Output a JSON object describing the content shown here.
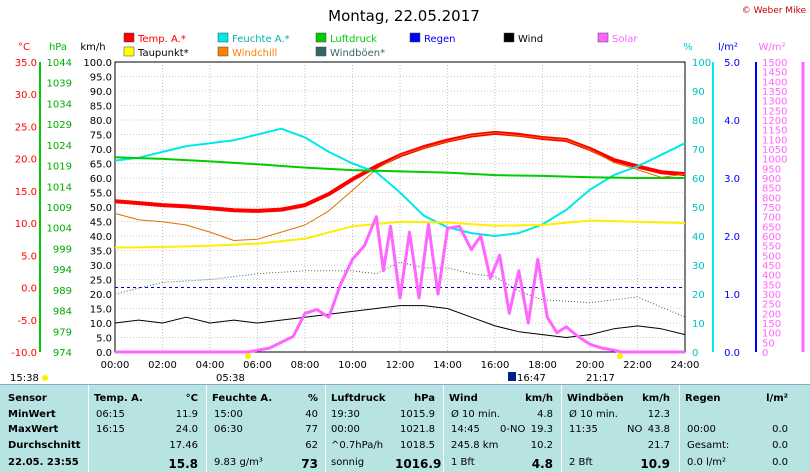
{
  "title": "Montag, 22.05.2017",
  "copyright": "© Weber Mike",
  "legend": [
    {
      "label": "Temp. A.*",
      "color": "#ff0000"
    },
    {
      "label": "Feuchte A.*",
      "color": "#00e8e8"
    },
    {
      "label": "Luftdruck",
      "color": "#00cc00"
    },
    {
      "label": "Regen",
      "color": "#0000ff"
    },
    {
      "label": "Wind",
      "color": "#000000"
    },
    {
      "label": "Solar",
      "color": "#ff66ff"
    },
    {
      "label": "Taupunkt*",
      "color": "#ffff00"
    },
    {
      "label": "Windchill",
      "color": "#ff8000"
    },
    {
      "label": "Windböen*",
      "color": "#336666"
    }
  ],
  "axis_titles": {
    "temp": "°C",
    "pressure": "hPa",
    "wind": "km/h",
    "humidity": "%",
    "rain": "l/m²",
    "solar": "W/m²"
  },
  "sun_times": {
    "sunrise": "05:38",
    "sunset": "21:17",
    "moon": "16:47",
    "left": "15:38"
  },
  "chart_data": {
    "type": "line",
    "x_ticks": [
      "00:00",
      "02:00",
      "04:00",
      "06:00",
      "08:00",
      "10:00",
      "12:00",
      "14:00",
      "16:00",
      "18:00",
      "20:00",
      "22:00",
      "24:00"
    ],
    "wind_axis": {
      "range": [
        0,
        100
      ],
      "ticks": [
        "0.0",
        "5.0",
        "10.0",
        "15.0",
        "20.0",
        "25.0",
        "30.0",
        "35.0",
        "40.0",
        "45.0",
        "50.0",
        "55.0",
        "60.0",
        "65.0",
        "70.0",
        "75.0",
        "80.0",
        "85.0",
        "90.0",
        "95.0",
        "100.0"
      ]
    },
    "temp_axis": {
      "range": [
        -10,
        35
      ],
      "ticks": [
        "-10.0",
        "-5.0",
        "0.0",
        "5.0",
        "10.0",
        "15.0",
        "20.0",
        "25.0",
        "30.0",
        "35.0"
      ]
    },
    "pressure_axis": {
      "ticks": [
        "974",
        "979",
        "984",
        "989",
        "994",
        "999",
        "1004",
        "1009",
        "1014",
        "1019",
        "1024",
        "1029",
        "1034",
        "1039",
        "1044"
      ]
    },
    "humidity_axis": {
      "range": [
        0,
        100
      ],
      "ticks": [
        "0",
        "10",
        "20",
        "30",
        "40",
        "50",
        "60",
        "70",
        "80",
        "90",
        "100"
      ]
    },
    "rain_axis": {
      "range": [
        0,
        5
      ],
      "ticks": [
        "0.0",
        "1.0",
        "2.0",
        "3.0",
        "4.0",
        "5.0"
      ]
    },
    "solar_axis": {
      "range": [
        0,
        1500
      ],
      "ticks": [
        "0",
        "50",
        "100",
        "150",
        "200",
        "250",
        "300",
        "350",
        "400",
        "450",
        "500",
        "550",
        "600",
        "650",
        "700",
        "750",
        "800",
        "850",
        "900",
        "950",
        "1000",
        "1050",
        "1100",
        "1150",
        "1200",
        "1250",
        "1300",
        "1350",
        "1400",
        "1450",
        "1500"
      ]
    },
    "series": [
      {
        "name": "Temp. A.*",
        "axis": "temp",
        "hours": [
          0,
          1,
          2,
          3,
          4,
          5,
          6,
          7,
          8,
          9,
          10,
          11,
          12,
          13,
          14,
          15,
          16,
          17,
          18,
          19,
          20,
          21,
          22,
          23,
          24
        ],
        "values": [
          13.4,
          13.1,
          12.8,
          12.6,
          12.3,
          12.0,
          11.9,
          12.1,
          12.8,
          14.5,
          16.8,
          18.8,
          20.5,
          21.8,
          22.8,
          23.6,
          24.0,
          23.7,
          23.2,
          22.9,
          21.5,
          19.8,
          18.8,
          17.9,
          17.6
        ]
      },
      {
        "name": "Feuchte A.*",
        "axis": "humidity",
        "hours": [
          0,
          1,
          2,
          3,
          4,
          5,
          6,
          7,
          8,
          9,
          10,
          11,
          12,
          13,
          14,
          15,
          16,
          17,
          18,
          19,
          20,
          21,
          22,
          23,
          24
        ],
        "values": [
          66,
          67,
          69,
          71,
          72,
          73,
          75,
          77,
          74,
          69,
          65,
          62,
          55,
          47,
          43,
          41,
          40,
          41,
          44,
          49,
          56,
          61,
          64,
          68,
          72
        ]
      },
      {
        "name": "Taupunkt*",
        "axis": "temp",
        "hours": [
          0,
          2,
          4,
          6,
          8,
          10,
          12,
          14,
          16,
          18,
          20,
          22,
          24
        ],
        "values": [
          6.2,
          6.3,
          6.5,
          6.8,
          7.6,
          9.5,
          10.2,
          10.1,
          9.6,
          9.7,
          10.4,
          10.2,
          10.0
        ]
      },
      {
        "name": "Windchill",
        "axis": "temp",
        "hours": [
          0,
          1,
          2,
          3,
          4,
          5,
          6,
          7,
          8,
          9,
          10,
          11,
          12,
          13,
          14,
          15,
          16,
          17,
          18,
          19,
          20,
          21,
          22,
          23,
          24
        ],
        "values": [
          11.5,
          10.5,
          10.2,
          9.7,
          8.6,
          7.3,
          7.5,
          8.6,
          9.7,
          11.9,
          15.1,
          18.4,
          20.5,
          21.7,
          22.7,
          23.6,
          24.0,
          23.6,
          23.2,
          22.9,
          21.4,
          19.4,
          18.3,
          17.1,
          17.6
        ]
      },
      {
        "name": "Luftdruck",
        "axis": "pressure",
        "hours": [
          0,
          2,
          4,
          6,
          8,
          10,
          12,
          14,
          16,
          18,
          20,
          22,
          24
        ],
        "values": [
          1021.0,
          1020.6,
          1020.0,
          1019.3,
          1018.5,
          1017.9,
          1017.6,
          1017.3,
          1016.7,
          1016.5,
          1016.2,
          1016.0,
          1016.0
        ]
      },
      {
        "name": "Windböen*",
        "axis": "wind",
        "hours": [
          0,
          2,
          4,
          6,
          8,
          10,
          11,
          12,
          13,
          14,
          15,
          16,
          17,
          18,
          20,
          22,
          24
        ],
        "values": [
          20,
          24,
          25,
          27,
          28,
          28,
          27,
          31,
          29,
          29,
          27,
          26,
          21,
          18,
          17,
          19,
          12
        ]
      },
      {
        "name": "Wind",
        "axis": "wind",
        "hours": [
          0,
          1,
          2,
          3,
          4,
          5,
          6,
          7,
          8,
          9,
          10,
          11,
          12,
          13,
          14,
          15,
          16,
          17,
          18,
          19,
          20,
          21,
          22,
          23,
          24
        ],
        "values": [
          10,
          11,
          10,
          12,
          10,
          11,
          10,
          11,
          12,
          13,
          14,
          15,
          16,
          16,
          15,
          12,
          9,
          7,
          6,
          5,
          6,
          8,
          9,
          8,
          6
        ]
      },
      {
        "name": "Solar",
        "axis": "solar",
        "hours": [
          0,
          5.6,
          6.5,
          7.5,
          8,
          8.5,
          9,
          9.5,
          10,
          10.5,
          11,
          11.3,
          11.6,
          12,
          12.4,
          12.8,
          13.2,
          13.6,
          14,
          14.5,
          15,
          15.4,
          15.8,
          16.2,
          16.6,
          17,
          17.4,
          17.8,
          18.2,
          18.6,
          19,
          19.5,
          20,
          20.5,
          21,
          21.3,
          24
        ],
        "values": [
          0,
          0,
          20,
          80,
          200,
          220,
          180,
          350,
          480,
          550,
          700,
          420,
          650,
          280,
          620,
          280,
          660,
          300,
          640,
          650,
          530,
          600,
          380,
          500,
          200,
          420,
          150,
          480,
          180,
          100,
          130,
          80,
          40,
          20,
          10,
          0,
          0
        ]
      }
    ]
  },
  "table": {
    "headers": {
      "sensor": "Sensor",
      "temp": "Temp. A.",
      "temp_unit": "°C",
      "hum": "Feuchte A.",
      "hum_unit": "%",
      "press": "Luftdruck",
      "press_unit": "hPa",
      "wind": "Wind",
      "wind_unit": "km/h",
      "gust": "Windböen",
      "gust_unit": "km/h",
      "rain": "Regen",
      "rain_unit": "l/m²"
    },
    "rows": [
      {
        "label": "MinWert",
        "temp_t": "06:15",
        "temp_v": "11.9",
        "hum_t": "15:00",
        "hum_v": "40",
        "press_t": "19:30",
        "press_v": "1015.9",
        "wind_t": "Ø 10 min.",
        "wind_v": "4.8",
        "gust_t": "Ø 10 min.",
        "gust_v": "12.3",
        "rain_t": "",
        "rain_v": ""
      },
      {
        "label": "MaxWert",
        "temp_t": "16:15",
        "temp_v": "24.0",
        "hum_t": "06:30",
        "hum_v": "77",
        "press_t": "00:00",
        "press_v": "1021.8",
        "wind_t": "14:45",
        "wind_d": "0-NO",
        "wind_v": "19.3",
        "gust_t": "11:35",
        "gust_d": "NO",
        "gust_v": "43.8",
        "rain_t": "00:00",
        "rain_v": "0.0"
      },
      {
        "label": "Durchschnitt",
        "temp_t": "",
        "temp_v": "17.46",
        "hum_t": "",
        "hum_v": "62",
        "press_t": "^0.7hPa/h",
        "press_v": "1018.5",
        "wind_t": "245.8 km",
        "wind_v": "10.2",
        "gust_t": "",
        "gust_v": "21.7",
        "rain_t": "Gesamt:",
        "rain_v": "0.0"
      },
      {
        "label": "22.05. 23:55",
        "temp_t": "",
        "temp_v": "15.8",
        "hum_t": "9.83 g/m³",
        "hum_v": "73",
        "press_t": "sonnig",
        "press_v": "1016.9",
        "wind_t": "1 Bft",
        "wind_v": "4.8",
        "gust_t": "2 Bft",
        "gust_v": "10.9",
        "rain_t": "0.0 l/m²",
        "rain_v": "0.0"
      }
    ]
  }
}
